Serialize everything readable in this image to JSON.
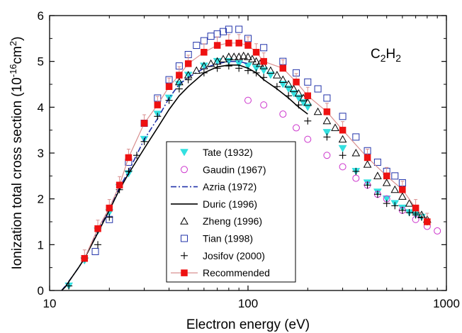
{
  "chart_data": {
    "type": "scatter",
    "xlabel": "Electron energy (eV)",
    "ylabel_parts": {
      "main": "Ionization total cross section (10",
      "exp1": "-16",
      "mid": "cm",
      "exp2": "2",
      "end": ")"
    },
    "xscale": "log",
    "xlim": [
      10,
      1000
    ],
    "ylim": [
      0,
      6
    ],
    "x_ticks": [
      10,
      100,
      1000
    ],
    "x_tick_labels": [
      "10",
      "100",
      "1000"
    ],
    "y_ticks": [
      0,
      1,
      2,
      3,
      4,
      5,
      6
    ],
    "y_tick_labels": [
      "0",
      "1",
      "2",
      "3",
      "4",
      "5",
      "6"
    ],
    "molecule": {
      "c": "C",
      "s1": "2",
      "h": "H",
      "s2": "2"
    },
    "legend_position": "lower-center",
    "series": [
      {
        "name": "Tate (1932)",
        "marker": "triangle-down-filled",
        "color": "#33e0e0",
        "x": [
          12.5,
          15,
          17.5,
          20,
          22.5,
          25,
          30,
          35,
          40,
          45,
          50,
          60,
          70,
          80,
          90,
          100,
          110,
          120,
          130,
          150,
          160,
          170,
          180,
          190,
          200,
          250,
          300,
          350,
          400,
          450,
          500,
          550,
          600,
          650,
          700,
          750
        ],
        "y": [
          0.1,
          0.65,
          1.3,
          1.7,
          2.25,
          2.55,
          3.3,
          3.85,
          4.2,
          4.5,
          4.7,
          4.9,
          5.0,
          5.0,
          4.95,
          4.9,
          4.85,
          4.8,
          4.7,
          4.5,
          4.4,
          4.3,
          4.2,
          4.1,
          4.0,
          3.45,
          3.1,
          2.6,
          2.35,
          2.15,
          2.0,
          1.9,
          1.8,
          1.7,
          1.65,
          1.6
        ]
      },
      {
        "name": "Gaudin (1967)",
        "marker": "circle-open",
        "color": "#cc33cc",
        "x": [
          100,
          120,
          150,
          175,
          200,
          250,
          300,
          350,
          400,
          450,
          500,
          600,
          700,
          800,
          900
        ],
        "y": [
          4.15,
          4.05,
          3.85,
          3.55,
          3.3,
          2.95,
          2.7,
          2.45,
          2.3,
          2.1,
          2.0,
          1.75,
          1.55,
          1.4,
          1.3
        ]
      },
      {
        "name": "Azria (1972)",
        "line": "dash-dot",
        "color": "#2233aa",
        "x": [
          11.5,
          12,
          13,
          14,
          15,
          17,
          20,
          22.5,
          25,
          30,
          35,
          40,
          45,
          50,
          60,
          70,
          80,
          90,
          100
        ],
        "y": [
          0.0,
          0.1,
          0.3,
          0.5,
          0.7,
          1.2,
          1.8,
          2.25,
          2.6,
          3.3,
          3.75,
          4.2,
          4.5,
          4.65,
          4.85,
          4.95,
          5.0,
          5.0,
          4.95
        ]
      },
      {
        "name": "Duric (1996)",
        "line": "solid",
        "color": "#000000",
        "x": [
          11.5,
          12,
          13,
          14,
          15,
          17,
          20,
          22.5,
          25,
          30,
          35,
          40,
          45,
          50,
          60,
          70,
          80,
          90,
          100,
          110,
          120,
          140,
          160,
          180,
          200
        ],
        "y": [
          0.0,
          0.08,
          0.3,
          0.5,
          0.7,
          1.15,
          1.75,
          2.2,
          2.55,
          3.1,
          3.55,
          3.95,
          4.25,
          4.45,
          4.75,
          4.88,
          4.92,
          4.92,
          4.85,
          4.75,
          4.6,
          4.4,
          4.2,
          4.0,
          3.85
        ]
      },
      {
        "name": "Zheng (1996)",
        "marker": "triangle-up-open",
        "color": "#000000",
        "x": [
          45,
          50,
          55,
          60,
          65,
          70,
          75,
          80,
          85,
          90,
          95,
          100,
          105,
          110,
          115,
          120,
          130,
          140,
          150,
          160,
          170,
          180,
          190,
          200,
          225,
          250,
          275,
          300,
          350,
          400,
          450,
          500,
          550,
          600,
          650,
          700,
          750,
          800
        ],
        "y": [
          4.55,
          4.7,
          4.8,
          4.9,
          4.95,
          5.0,
          5.05,
          5.1,
          5.1,
          5.1,
          5.12,
          5.1,
          5.05,
          5.0,
          4.95,
          4.9,
          4.8,
          4.7,
          4.6,
          4.5,
          4.4,
          4.3,
          4.2,
          4.1,
          3.9,
          3.7,
          3.55,
          3.3,
          3.0,
          2.75,
          2.5,
          2.35,
          2.2,
          2.05,
          1.9,
          1.75,
          1.65,
          1.55
        ]
      },
      {
        "name": "Tian (1998)",
        "marker": "square-open",
        "color": "#2233aa",
        "x": [
          17,
          20,
          25,
          30,
          35,
          40,
          45,
          50,
          55,
          60,
          65,
          70,
          75,
          80,
          90,
          100,
          120,
          150,
          175,
          200,
          225,
          250,
          300,
          350,
          400,
          450,
          500,
          550,
          600
        ],
        "y": [
          0.85,
          1.55,
          2.8,
          3.65,
          4.2,
          4.6,
          4.9,
          5.15,
          5.35,
          5.45,
          5.55,
          5.6,
          5.65,
          5.7,
          5.7,
          5.5,
          5.3,
          5.0,
          4.75,
          4.55,
          4.4,
          4.2,
          3.8,
          3.35,
          3.05,
          2.8,
          2.6,
          2.5,
          2.35
        ]
      },
      {
        "name": "Josifov (2000)",
        "marker": "plus",
        "color": "#000000",
        "x": [
          12.5,
          15,
          17.5,
          20,
          22.5,
          25,
          27.5,
          30,
          35,
          40,
          45,
          50,
          60,
          70,
          80,
          90,
          100,
          110,
          120,
          140,
          160,
          180,
          200,
          250,
          300,
          350,
          400,
          450,
          500,
          550,
          600,
          650,
          700,
          750,
          800
        ],
        "y": [
          0.1,
          0.7,
          1.0,
          1.6,
          2.2,
          2.6,
          2.95,
          3.25,
          3.8,
          4.15,
          4.4,
          4.6,
          4.75,
          4.85,
          4.9,
          4.85,
          4.8,
          4.75,
          4.65,
          4.45,
          4.25,
          4.05,
          3.7,
          3.35,
          2.95,
          2.6,
          2.3,
          2.1,
          1.9,
          1.85,
          1.75,
          1.7,
          1.65,
          1.6,
          1.5
        ]
      },
      {
        "name": "Recommended",
        "marker": "square-filled",
        "color": "#ee1111",
        "line": "solid",
        "line_color": "#d98f8f",
        "x": [
          15,
          17.5,
          20,
          22.5,
          25,
          30,
          35,
          40,
          45,
          50,
          60,
          70,
          80,
          90,
          100,
          110,
          120,
          150,
          175,
          200,
          250,
          300,
          400,
          500,
          600,
          700,
          800
        ],
        "y": [
          0.7,
          1.35,
          1.8,
          2.3,
          2.9,
          3.65,
          4.05,
          4.45,
          4.7,
          4.95,
          5.2,
          5.35,
          5.4,
          5.4,
          5.35,
          5.2,
          5.0,
          4.85,
          4.55,
          4.25,
          3.9,
          3.5,
          2.9,
          2.5,
          2.2,
          1.8,
          1.5
        ]
      }
    ]
  }
}
